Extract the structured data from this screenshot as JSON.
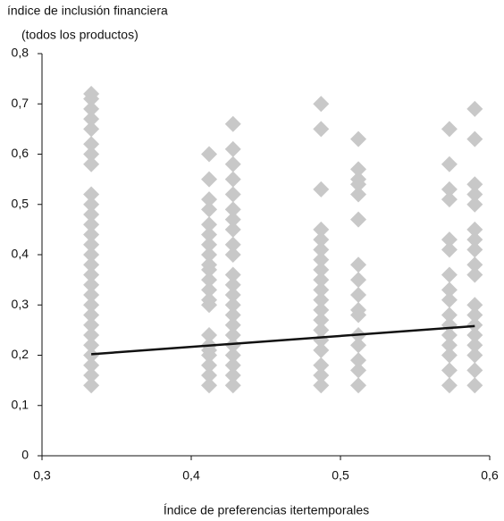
{
  "chart_data": {
    "type": "scatter",
    "ylabel": [
      "índice de inclusión financiera",
      "(todos los productos)"
    ],
    "xlabel": "Índice de preferencias itertemporales",
    "xlim": [
      0.3,
      0.6
    ],
    "ylim": [
      0,
      0.8
    ],
    "xticks": [
      {
        "value": 0.3,
        "label": "0,3"
      },
      {
        "value": 0.4,
        "label": "0,4"
      },
      {
        "value": 0.5,
        "label": "0,5"
      },
      {
        "value": 0.6,
        "label": "0,6"
      }
    ],
    "yticks": [
      0,
      {
        "value": 0.1,
        "label": "0,1"
      },
      {
        "value": 0.2,
        "label": "0,2"
      },
      {
        "value": 0.3,
        "label": "0,3"
      },
      {
        "value": 0.4,
        "label": "0,4"
      },
      {
        "value": 0.5,
        "label": "0,5"
      },
      {
        "value": 0.6,
        "label": "0,6"
      },
      {
        "value": 0.7,
        "label": "0,7"
      },
      {
        "value": 0.8,
        "label": "0,8"
      }
    ],
    "color": "#c8c8c8",
    "groups": [
      {
        "x": 0.333,
        "values": [
          0.14,
          0.16,
          0.18,
          0.2,
          0.22,
          0.24,
          0.26,
          0.28,
          0.3,
          0.32,
          0.34,
          0.36,
          0.38,
          0.4,
          0.42,
          0.44,
          0.46,
          0.48,
          0.5,
          0.52,
          0.58,
          0.6,
          0.62,
          0.65,
          0.67,
          0.69,
          0.71,
          0.72
        ]
      },
      {
        "x": 0.412,
        "values": [
          0.14,
          0.16,
          0.18,
          0.2,
          0.21,
          0.22,
          0.24,
          0.3,
          0.31,
          0.33,
          0.35,
          0.37,
          0.38,
          0.4,
          0.42,
          0.44,
          0.46,
          0.49,
          0.51,
          0.55,
          0.6
        ]
      },
      {
        "x": 0.428,
        "values": [
          0.14,
          0.16,
          0.18,
          0.2,
          0.22,
          0.24,
          0.26,
          0.28,
          0.3,
          0.32,
          0.34,
          0.36,
          0.4,
          0.42,
          0.45,
          0.47,
          0.49,
          0.52,
          0.55,
          0.58,
          0.61,
          0.66
        ]
      },
      {
        "x": 0.487,
        "values": [
          0.14,
          0.16,
          0.18,
          0.21,
          0.23,
          0.25,
          0.27,
          0.29,
          0.31,
          0.33,
          0.35,
          0.37,
          0.39,
          0.41,
          0.43,
          0.45,
          0.53,
          0.65,
          0.7
        ]
      },
      {
        "x": 0.512,
        "values": [
          0.14,
          0.17,
          0.19,
          0.22,
          0.24,
          0.28,
          0.29,
          0.32,
          0.35,
          0.38,
          0.47,
          0.52,
          0.54,
          0.55,
          0.57,
          0.63
        ]
      },
      {
        "x": 0.573,
        "values": [
          0.14,
          0.17,
          0.2,
          0.22,
          0.24,
          0.26,
          0.28,
          0.31,
          0.33,
          0.36,
          0.41,
          0.43,
          0.51,
          0.53,
          0.58,
          0.65
        ]
      },
      {
        "x": 0.59,
        "values": [
          0.14,
          0.17,
          0.2,
          0.22,
          0.24,
          0.26,
          0.28,
          0.3,
          0.36,
          0.38,
          0.41,
          0.43,
          0.45,
          0.5,
          0.52,
          0.54,
          0.63,
          0.69
        ]
      }
    ],
    "trendline": {
      "color": "#111111",
      "x": [
        0.333,
        0.59
      ],
      "y": [
        0.202,
        0.258
      ]
    }
  }
}
